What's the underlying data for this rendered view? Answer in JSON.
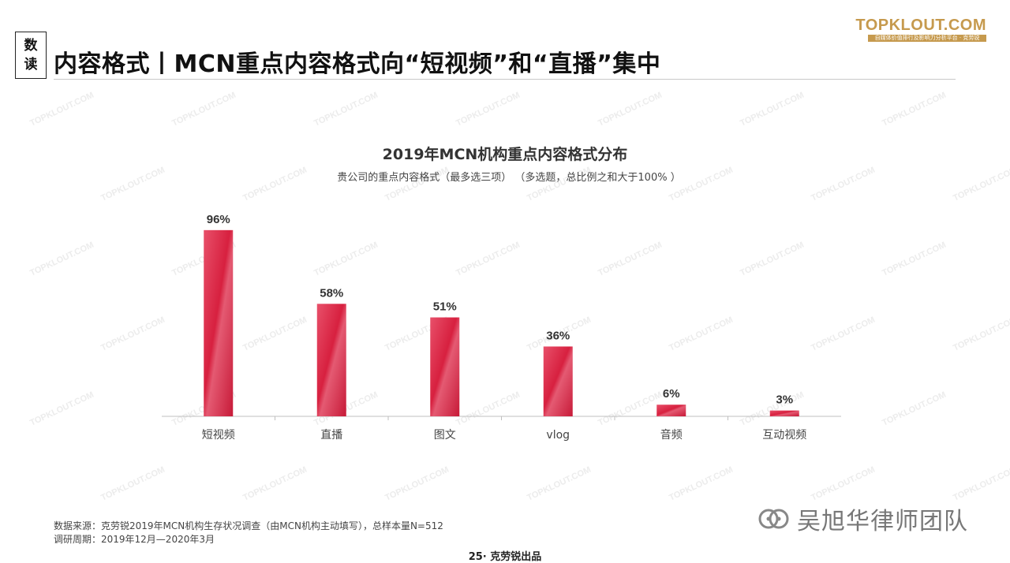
{
  "header": {
    "tag_line1": "数",
    "tag_line2": "读",
    "title": "内容格式丨MCN重点内容格式向“短视频”和“直播”集中"
  },
  "brand": {
    "name": "TOPKLOUT.COM",
    "tagline": "自媒体价值排行及影响力分析平台 · 克劳锐"
  },
  "chart_data": {
    "type": "bar",
    "title": "2019年MCN机构重点内容格式分布",
    "subtitle": "贵公司的重点内容格式（最多选三项） （多选题，总比例之和大于100% ）",
    "categories": [
      "短视频",
      "直播",
      "图文",
      "vlog",
      "音频",
      "互动视频"
    ],
    "values": [
      96,
      58,
      51,
      36,
      6,
      3
    ],
    "value_labels": [
      "96%",
      "58%",
      "51%",
      "36%",
      "6%",
      "3%"
    ],
    "unit": "%",
    "ylim": [
      0,
      100
    ],
    "grid": false,
    "legend": "none",
    "bar_color": "#d7203f"
  },
  "footer": {
    "source": "数据来源：克劳锐2019年MCN机构生存状况调查（由MCN机构主动填写），总样本量N=512",
    "period": "调研周期：2019年12月—2020年3月",
    "page": "25· 克劳锐出品"
  },
  "watermark": {
    "text": "TOPKLOUT.COM",
    "account": "吴旭华律师团队",
    "icon": "wechat-official-account-icon"
  }
}
